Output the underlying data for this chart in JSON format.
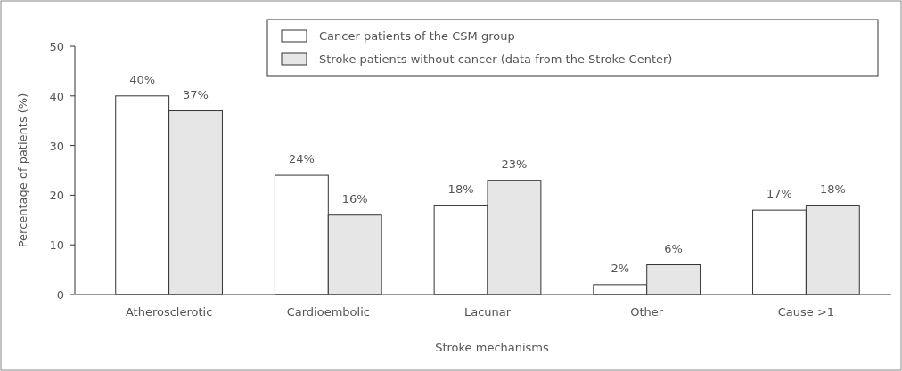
{
  "chart_data": {
    "type": "bar",
    "xlabel": "Stroke mechanisms",
    "ylabel": "Percentage of patients (%)",
    "categories": [
      "Atherosclerotic",
      "Cardioembolic",
      "Lacunar",
      "Other",
      "Cause >1"
    ],
    "series": [
      {
        "name": "Cancer patients of the CSM group",
        "color": "#ffffff",
        "values": [
          40,
          24,
          18,
          2,
          17
        ],
        "value_labels": [
          "40%",
          "24%",
          "18%",
          "2%",
          "17%"
        ]
      },
      {
        "name": "Stroke patients without cancer (data from the Stroke Center)",
        "color": "#e6e6e6",
        "values": [
          37,
          16,
          23,
          6,
          18
        ],
        "value_labels": [
          "37%",
          "16%",
          "23%",
          "6%",
          "18%"
        ]
      }
    ],
    "ylim": [
      0,
      50
    ],
    "yticks": [
      0,
      10,
      20,
      30,
      40,
      50
    ],
    "grid": false,
    "legend": "top right"
  }
}
